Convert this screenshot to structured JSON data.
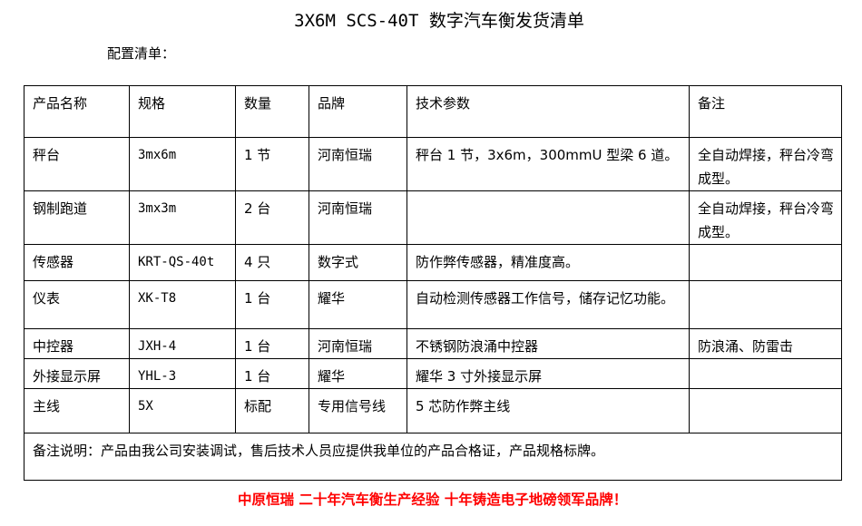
{
  "title": "3X6M SCS-40T 数字汽车衡发货清单",
  "subtitle": "配置清单：",
  "table": {
    "headers": [
      "产品名称",
      "规格",
      "数量",
      "品牌",
      "技术参数",
      "备注"
    ],
    "rows": [
      [
        "秤台",
        "3mx6m",
        "1 节",
        "河南恒瑞",
        "秤台 1 节，3x6m，300mmU 型梁 6 道。",
        "全自动焊接，秤台冷弯成型。"
      ],
      [
        "钢制跑道",
        "3mx3m",
        "2 台",
        "河南恒瑞",
        "",
        "全自动焊接，秤台冷弯成型。"
      ],
      [
        "传感器",
        "KRT-QS-40t",
        "4 只",
        "数字式",
        "防作弊传感器，精准度高。",
        ""
      ],
      [
        "仪表",
        "XK-T8",
        "1 台",
        "耀华",
        "自动检测传感器工作信号，储存记忆功能。",
        ""
      ],
      [
        "中控器",
        "JXH-4",
        "1 台",
        "河南恒瑞",
        "不锈钢防浪涌中控器",
        "防浪涌、防雷击"
      ],
      [
        "外接显示屏",
        "YHL-3",
        "1 台",
        "耀华",
        "耀华 3 寸外接显示屏",
        ""
      ],
      [
        "主线",
        "5X",
        "标配",
        "专用信号线",
        "5 芯防作弊主线",
        ""
      ]
    ],
    "note": "备注说明：产品由我公司安装调试，售后技术人员应提供我单位的产品合格证，产品规格标牌。"
  },
  "footer": "中原恒瑞 二十年汽车衡生产经验 十年铸造电子地磅领军品牌！",
  "colors": {
    "footer": "#ff0000"
  }
}
